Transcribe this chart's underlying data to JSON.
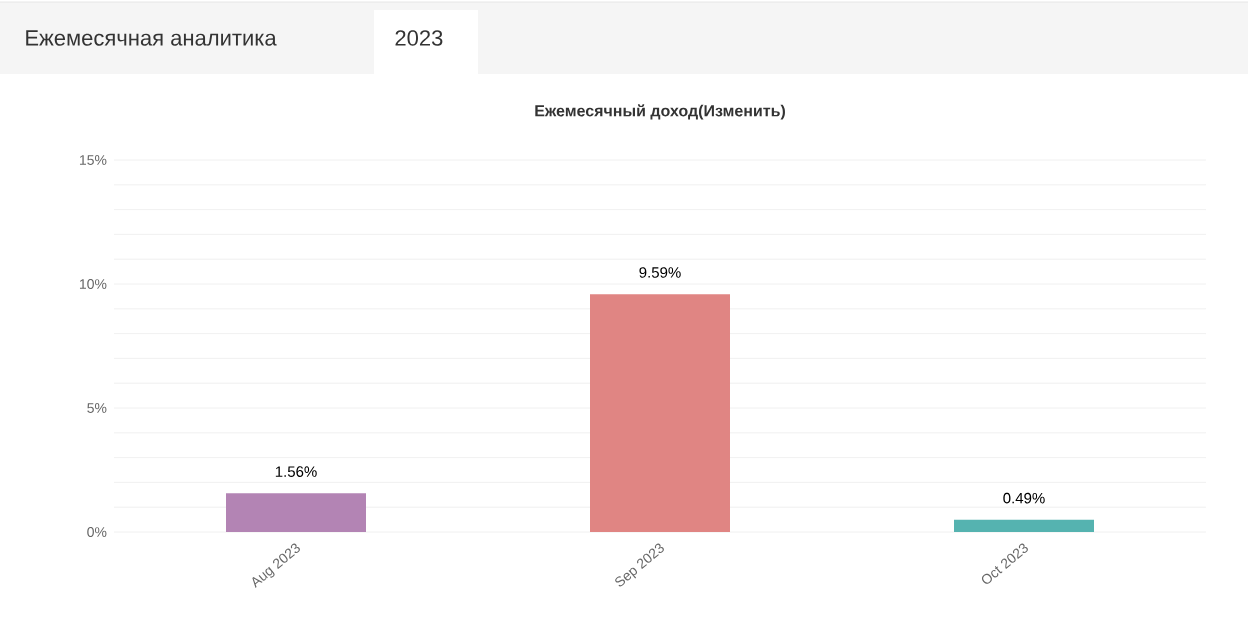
{
  "chart_data": {
    "type": "bar",
    "title": "Ежемесячный доход(Изменить)",
    "annotations": [
      "Ежемесячная аналитика",
      "2023"
    ],
    "categories": [
      "Aug 2023",
      "Sep 2023",
      "Oct 2023"
    ],
    "values": [
      1.56,
      9.59,
      0.49
    ],
    "colors": [
      "#b384b4",
      "#e08583",
      "#55b3b0"
    ],
    "value_labels": [
      "1.56%",
      "9.59%",
      "0.49%"
    ],
    "ylim": [
      0,
      15
    ],
    "yticks": [
      {
        "value": 0,
        "label": "0%"
      },
      {
        "value": 1,
        "label": null
      },
      {
        "value": 2,
        "label": null
      },
      {
        "value": 3,
        "label": null
      },
      {
        "value": 4,
        "label": null
      },
      {
        "value": 5,
        "label": "5%"
      },
      {
        "value": 6,
        "label": null
      },
      {
        "value": 7,
        "label": null
      },
      {
        "value": 8,
        "label": null
      },
      {
        "value": 9,
        "label": null
      },
      {
        "value": 10,
        "label": "10%"
      },
      {
        "value": 11,
        "label": null
      },
      {
        "value": 12,
        "label": null
      },
      {
        "value": 13,
        "label": null
      },
      {
        "value": 14,
        "label": null
      },
      {
        "value": 15,
        "label": "15%"
      }
    ],
    "grid": "y"
  }
}
